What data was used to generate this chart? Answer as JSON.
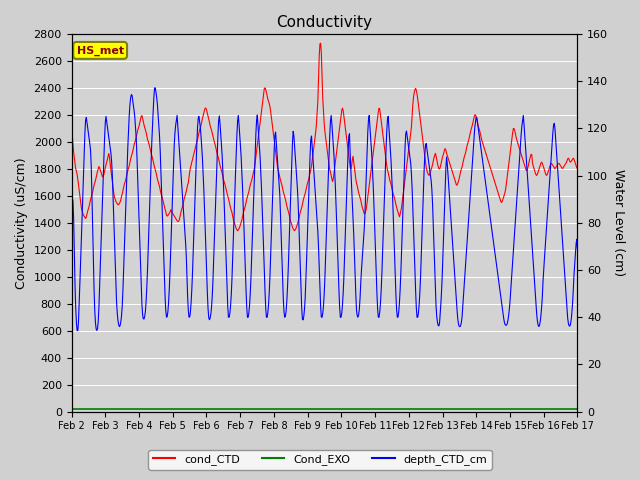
{
  "title": "Conductivity",
  "ylabel_left": "Conductivity (uS/cm)",
  "ylabel_right": "Water Level (cm)",
  "ylim_left": [
    0,
    2800
  ],
  "ylim_right": [
    0,
    160
  ],
  "background_color": "#e8e8e8",
  "plot_bg_color": "#d3d3d3",
  "legend_label": "HS_met",
  "legend_entries": [
    "cond_CTD",
    "Cond_EXO",
    "depth_CTD_cm"
  ],
  "line_colors": [
    "red",
    "green",
    "blue"
  ],
  "x_tick_labels": [
    "Feb 2",
    "Feb 3",
    "Feb 4",
    "Feb 5",
    "Feb 6",
    "Feb 7",
    "Feb 8",
    "Feb 9",
    "Feb 10",
    "Feb 11",
    "Feb 12",
    "Feb 13",
    "Feb 14",
    "Feb 15",
    "Feb 16",
    "Feb 17"
  ],
  "n_points": 720,
  "red_data": [
    2100,
    2050,
    1950,
    1900,
    1850,
    1800,
    1780,
    1750,
    1700,
    1650,
    1600,
    1550,
    1500,
    1480,
    1460,
    1450,
    1440,
    1430,
    1450,
    1480,
    1500,
    1520,
    1550,
    1580,
    1600,
    1620,
    1650,
    1680,
    1700,
    1720,
    1750,
    1780,
    1800,
    1820,
    1800,
    1780,
    1760,
    1740,
    1750,
    1760,
    1800,
    1820,
    1850,
    1870,
    1900,
    1920,
    1850,
    1800,
    1750,
    1700,
    1650,
    1600,
    1580,
    1560,
    1550,
    1540,
    1530,
    1540,
    1550,
    1570,
    1600,
    1620,
    1650,
    1680,
    1700,
    1720,
    1750,
    1780,
    1800,
    1820,
    1850,
    1880,
    1900,
    1920,
    1950,
    1980,
    2000,
    2020,
    2050,
    2080,
    2100,
    2120,
    2150,
    2180,
    2200,
    2180,
    2150,
    2120,
    2100,
    2080,
    2050,
    2020,
    2000,
    1980,
    1950,
    1920,
    1900,
    1880,
    1850,
    1820,
    1800,
    1780,
    1750,
    1720,
    1700,
    1680,
    1650,
    1620,
    1600,
    1580,
    1550,
    1520,
    1500,
    1480,
    1450,
    1450,
    1460,
    1470,
    1480,
    1500,
    1480,
    1470,
    1460,
    1450,
    1440,
    1430,
    1420,
    1410,
    1410,
    1420,
    1450,
    1480,
    1500,
    1520,
    1550,
    1580,
    1600,
    1620,
    1650,
    1680,
    1700,
    1750,
    1800,
    1820,
    1850,
    1870,
    1900,
    1920,
    1950,
    1970,
    2000,
    2020,
    2050,
    2080,
    2100,
    2120,
    2150,
    2180,
    2200,
    2230,
    2250,
    2250,
    2230,
    2200,
    2180,
    2150,
    2120,
    2100,
    2080,
    2050,
    2020,
    2000,
    1980,
    1950,
    1920,
    1900,
    1880,
    1850,
    1820,
    1800,
    1780,
    1750,
    1720,
    1700,
    1680,
    1650,
    1620,
    1600,
    1580,
    1550,
    1520,
    1500,
    1480,
    1450,
    1420,
    1400,
    1380,
    1360,
    1350,
    1340,
    1350,
    1360,
    1380,
    1400,
    1420,
    1450,
    1480,
    1500,
    1520,
    1550,
    1580,
    1600,
    1620,
    1650,
    1680,
    1700,
    1720,
    1750,
    1780,
    1800,
    1850,
    1900,
    1950,
    2000,
    2050,
    2100,
    2150,
    2200,
    2250,
    2300,
    2350,
    2400,
    2400,
    2380,
    2350,
    2320,
    2300,
    2280,
    2250,
    2200,
    2150,
    2100,
    2050,
    2000,
    1950,
    1900,
    1850,
    1800,
    1780,
    1750,
    1720,
    1700,
    1680,
    1650,
    1620,
    1600,
    1580,
    1550,
    1520,
    1500,
    1480,
    1450,
    1420,
    1400,
    1380,
    1360,
    1350,
    1340,
    1350,
    1360,
    1380,
    1400,
    1420,
    1450,
    1480,
    1500,
    1520,
    1550,
    1580,
    1600,
    1620,
    1650,
    1680,
    1700,
    1720,
    1750,
    1780,
    1800,
    1850,
    1900,
    1950,
    2000,
    2050,
    2100,
    2200,
    2300,
    2500,
    2700,
    2750,
    2700,
    2500,
    2300,
    2200,
    2100,
    2050,
    2000,
    1950,
    1900,
    1850,
    1800,
    1780,
    1750,
    1720,
    1700,
    1750,
    1800,
    1850,
    1900,
    1950,
    2000,
    2050,
    2100,
    2150,
    2200,
    2250,
    2250,
    2200,
    2150,
    2100,
    2050,
    2000,
    1950,
    1900,
    1850,
    1800,
    1800,
    1850,
    1900,
    1850,
    1800,
    1750,
    1700,
    1680,
    1650,
    1620,
    1600,
    1580,
    1550,
    1520,
    1500,
    1480,
    1460,
    1480,
    1500,
    1550,
    1600,
    1650,
    1700,
    1750,
    1800,
    1850,
    1900,
    1950,
    2000,
    2050,
    2100,
    2150,
    2200,
    2250,
    2250,
    2200,
    2150,
    2100,
    2050,
    2000,
    1950,
    1900,
    1850,
    1800,
    1780,
    1750,
    1720,
    1700,
    1680,
    1650,
    1620,
    1600,
    1580,
    1550,
    1520,
    1500,
    1480,
    1460,
    1440,
    1480,
    1500,
    1550,
    1600,
    1650,
    1700,
    1750,
    1800,
    1850,
    1900,
    1950,
    2000,
    2050,
    2100,
    2200,
    2300,
    2350,
    2380,
    2400,
    2380,
    2350,
    2300,
    2250,
    2200,
    2150,
    2100,
    2050,
    2000,
    1950,
    1900,
    1850,
    1800,
    1780,
    1760,
    1750,
    1760,
    1780,
    1800,
    1820,
    1850,
    1880,
    1900,
    1920,
    1880,
    1850,
    1820,
    1800,
    1800,
    1820,
    1850,
    1880,
    1900,
    1920,
    1950,
    1950,
    1920,
    1900,
    1880,
    1860,
    1840,
    1820,
    1800,
    1780,
    1760,
    1740,
    1720,
    1700,
    1680,
    1680,
    1700,
    1720,
    1750,
    1780,
    1800,
    1820,
    1850,
    1880,
    1900,
    1920,
    1950,
    1980,
    2000,
    2020,
    2050,
    2080,
    2100,
    2120,
    2150,
    2180,
    2200,
    2200,
    2180,
    2150,
    2120,
    2100,
    2080,
    2050,
    2020,
    2000,
    1980,
    1960,
    1940,
    1920,
    1900,
    1880,
    1860,
    1840,
    1820,
    1800,
    1780,
    1760,
    1740,
    1720,
    1700,
    1680,
    1660,
    1640,
    1620,
    1600,
    1580,
    1560,
    1550,
    1560,
    1580,
    1600,
    1620,
    1650,
    1700,
    1750,
    1800,
    1850,
    1900,
    1950,
    2000,
    2050,
    2100,
    2100,
    2080,
    2050,
    2020,
    2000,
    1980,
    1960,
    1940,
    1920,
    1900,
    1880,
    1860,
    1840,
    1820,
    1800,
    1780,
    1800,
    1820,
    1850,
    1880,
    1900,
    1920,
    1850,
    1820,
    1800,
    1780,
    1760,
    1750,
    1760,
    1780,
    1800,
    1820,
    1840,
    1850,
    1840,
    1820,
    1800,
    1780,
    1760,
    1750,
    1760,
    1780,
    1800,
    1820,
    1840,
    1840,
    1830,
    1820,
    1810,
    1800,
    1810,
    1820,
    1830,
    1840,
    1840,
    1830,
    1820,
    1810,
    1800,
    1810,
    1820,
    1830,
    1840,
    1850,
    1870,
    1880,
    1870,
    1850,
    1850,
    1860,
    1870,
    1880,
    1870,
    1850,
    1830,
    1810,
    1800
  ],
  "blue_data": [
    1600,
    1580,
    1550,
    1200,
    900,
    700,
    600,
    600,
    700,
    900,
    1100,
    1300,
    1500,
    1700,
    1900,
    2100,
    2200,
    2150,
    2100,
    2050,
    2000,
    1950,
    1800,
    1500,
    1200,
    900,
    700,
    620,
    600,
    620,
    700,
    900,
    1100,
    1300,
    1500,
    1700,
    1900,
    2100,
    2200,
    2150,
    2100,
    2050,
    2000,
    1950,
    1900,
    1800,
    1600,
    1400,
    1200,
    1000,
    800,
    700,
    650,
    630,
    640,
    680,
    750,
    900,
    1100,
    1300,
    1500,
    1700,
    1900,
    2050,
    2200,
    2300,
    2350,
    2350,
    2300,
    2250,
    2200,
    2100,
    2000,
    1800,
    1600,
    1400,
    1200,
    1000,
    800,
    700,
    680,
    700,
    750,
    850,
    1000,
    1200,
    1400,
    1600,
    1800,
    2000,
    2150,
    2300,
    2400,
    2400,
    2350,
    2300,
    2200,
    2100,
    2000,
    1800,
    1600,
    1400,
    1200,
    1000,
    800,
    700,
    700,
    750,
    850,
    1000,
    1200,
    1400,
    1600,
    1800,
    2000,
    2100,
    2150,
    2200,
    2100,
    2000,
    1900,
    1800,
    1700,
    1600,
    1500,
    1400,
    1300,
    1200,
    1000,
    800,
    700,
    700,
    750,
    850,
    1000,
    1200,
    1400,
    1600,
    1800,
    2000,
    2150,
    2200,
    2150,
    2100,
    2000,
    1900,
    1750,
    1600,
    1400,
    1200,
    1000,
    800,
    700,
    680,
    700,
    750,
    850,
    1000,
    1200,
    1400,
    1600,
    1800,
    2000,
    2150,
    2200,
    2100,
    2000,
    1900,
    1750,
    1600,
    1400,
    1200,
    1000,
    800,
    700,
    700,
    750,
    850,
    1000,
    1200,
    1400,
    1600,
    1800,
    2000,
    2150,
    2200,
    2100,
    2000,
    1900,
    1750,
    1600,
    1400,
    1200,
    1000,
    800,
    700,
    700,
    750,
    850,
    1000,
    1200,
    1400,
    1600,
    1800,
    2000,
    2150,
    2200,
    2100,
    2000,
    1900,
    1750,
    1600,
    1400,
    1200,
    1000,
    800,
    700,
    700,
    750,
    850,
    1000,
    1200,
    1400,
    1600,
    1800,
    2000,
    2100,
    2000,
    1900,
    1800,
    1700,
    1600,
    1400,
    1200,
    1000,
    800,
    700,
    700,
    750,
    850,
    1000,
    1200,
    1400,
    1600,
    1800,
    2000,
    2100,
    2000,
    1900,
    1800,
    1700,
    1600,
    1400,
    1200,
    1000,
    800,
    680,
    680,
    730,
    830,
    1000,
    1200,
    1400,
    1600,
    1800,
    2000,
    2050,
    1950,
    1850,
    1750,
    1650,
    1550,
    1450,
    1350,
    1200,
    1000,
    800,
    700,
    700,
    750,
    850,
    1000,
    1200,
    1400,
    1600,
    1800,
    2000,
    2150,
    2200,
    2100,
    2000,
    1900,
    1750,
    1600,
    1400,
    1200,
    1000,
    800,
    700,
    700,
    750,
    850,
    1000,
    1200,
    1400,
    1600,
    1800,
    2000,
    2100,
    1900,
    1750,
    1600,
    1450,
    1300,
    1100,
    900,
    750,
    700,
    700,
    750,
    850,
    1000,
    1100,
    1200,
    1300,
    1400,
    1600,
    1800,
    2000,
    2150,
    2200,
    2100,
    2000,
    1900,
    1750,
    1600,
    1400,
    1200,
    1000,
    800,
    700,
    700,
    750,
    850,
    1000,
    1200,
    1400,
    1600,
    1800,
    2000,
    2150,
    2200,
    2100,
    2000,
    1900,
    1750,
    1600,
    1400,
    1200,
    1000,
    800,
    700,
    700,
    750,
    850,
    1000,
    1200,
    1400,
    1600,
    1800,
    2000,
    2100,
    2050,
    2000,
    1950,
    1900,
    1850,
    1750,
    1600,
    1400,
    1200,
    1000,
    800,
    700,
    700,
    750,
    850,
    1000,
    1200,
    1400,
    1600,
    1800,
    1950,
    2000,
    1950,
    1900,
    1850,
    1800,
    1750,
    1700,
    1600,
    1400,
    1200,
    1000,
    800,
    700,
    650,
    630,
    650,
    750,
    850,
    1000,
    1200,
    1400,
    1600,
    1800,
    1900,
    1800,
    1700,
    1600,
    1500,
    1400,
    1300,
    1200,
    1100,
    1000,
    900,
    800,
    700,
    650,
    630,
    630,
    650,
    700,
    800,
    900,
    1000,
    1100,
    1200,
    1300,
    1400,
    1500,
    1600,
    1700,
    1800,
    1900,
    2000,
    2100,
    2150,
    2200,
    2150,
    2100,
    2050,
    2000,
    1950,
    1900,
    1850,
    1800,
    1750,
    1700,
    1650,
    1600,
    1550,
    1500,
    1450,
    1400,
    1350,
    1300,
    1250,
    1200,
    1150,
    1100,
    1050,
    1000,
    950,
    900,
    850,
    800,
    750,
    700,
    660,
    640,
    640,
    650,
    680,
    730,
    800,
    900,
    1000,
    1100,
    1200,
    1300,
    1400,
    1500,
    1600,
    1700,
    1800,
    1900,
    2000,
    2100,
    2150,
    2200,
    2100,
    2000,
    1900,
    1800,
    1700,
    1600,
    1500,
    1400,
    1300,
    1200,
    1100,
    1000,
    900,
    800,
    700,
    650,
    630,
    640,
    680,
    750,
    850,
    1000,
    1100,
    1200,
    1300,
    1400,
    1500,
    1600,
    1700,
    1800,
    1900,
    2000,
    2100,
    2150,
    2100,
    2000,
    1900,
    1800,
    1700,
    1600,
    1500,
    1400,
    1300,
    1200,
    1100,
    1000,
    900,
    800,
    700,
    650,
    630,
    640,
    680,
    750,
    850,
    1000,
    1100,
    1200,
    1300,
    1200
  ],
  "green_data_val": 20
}
